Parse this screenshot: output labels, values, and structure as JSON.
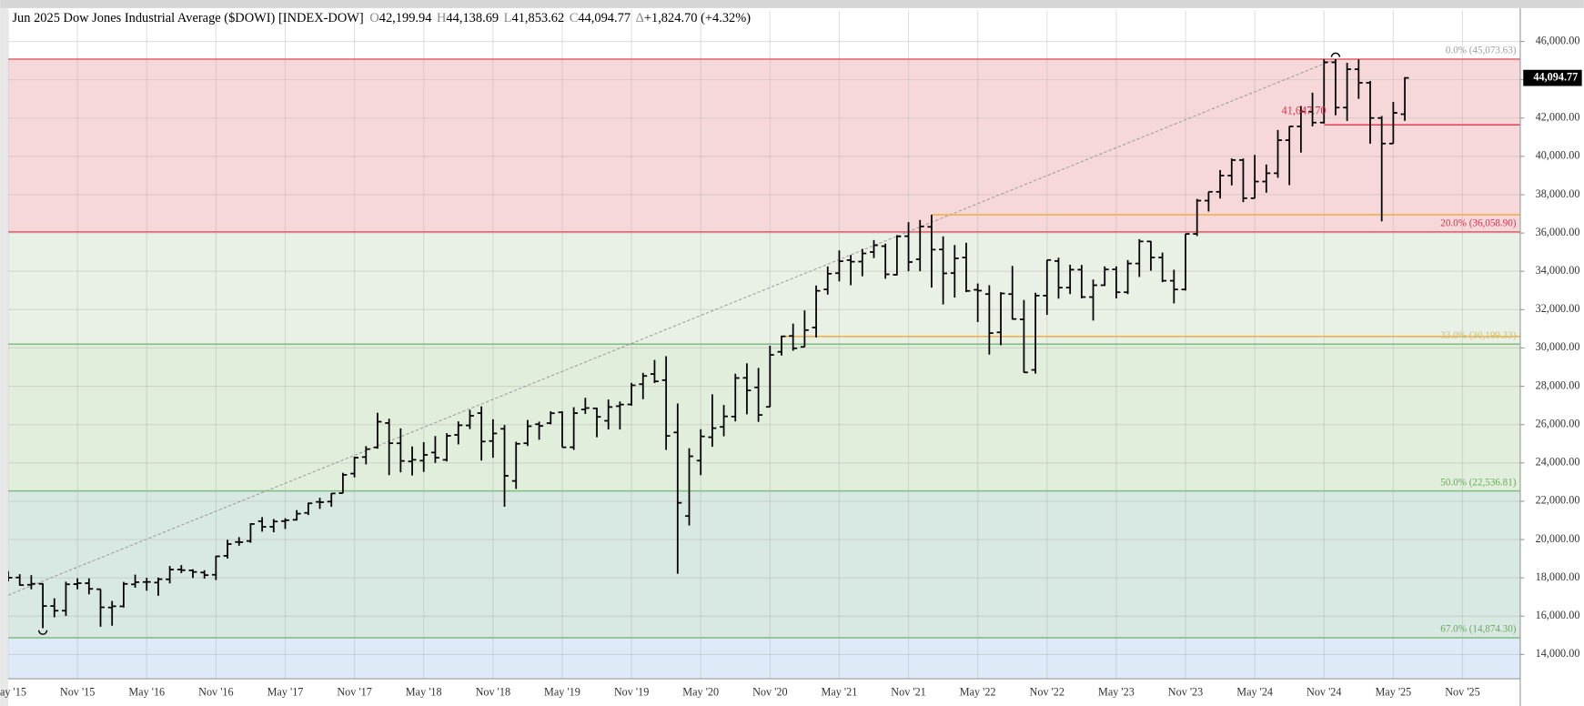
{
  "chart_data": {
    "type": "ohlc",
    "title": "Jun 2025 Dow Jones Industrial Average ($DOWI) [INDEX-DOW]",
    "header_values": [
      {
        "key": "O",
        "value": "42,199.94"
      },
      {
        "key": "H",
        "value": "44,138.69"
      },
      {
        "key": "L",
        "value": "41,853.62"
      },
      {
        "key": "C",
        "value": "44,094.77"
      },
      {
        "key": "Δ",
        "value": "+1,824.70 (+4.32%)"
      }
    ],
    "color": "#000000",
    "x": [
      "2015-05",
      "2015-06",
      "2015-07",
      "2015-08",
      "2015-09",
      "2015-10",
      "2015-11",
      "2015-12",
      "2016-01",
      "2016-02",
      "2016-03",
      "2016-04",
      "2016-05",
      "2016-06",
      "2016-07",
      "2016-08",
      "2016-09",
      "2016-10",
      "2016-11",
      "2016-12",
      "2017-01",
      "2017-02",
      "2017-03",
      "2017-04",
      "2017-05",
      "2017-06",
      "2017-07",
      "2017-08",
      "2017-09",
      "2017-10",
      "2017-11",
      "2017-12",
      "2018-01",
      "2018-02",
      "2018-03",
      "2018-04",
      "2018-05",
      "2018-06",
      "2018-07",
      "2018-08",
      "2018-09",
      "2018-10",
      "2018-11",
      "2018-12",
      "2019-01",
      "2019-02",
      "2019-03",
      "2019-04",
      "2019-05",
      "2019-06",
      "2019-07",
      "2019-08",
      "2019-09",
      "2019-10",
      "2019-11",
      "2019-12",
      "2020-01",
      "2020-02",
      "2020-03",
      "2020-04",
      "2020-05",
      "2020-06",
      "2020-07",
      "2020-08",
      "2020-09",
      "2020-10",
      "2020-11",
      "2020-12",
      "2021-01",
      "2021-02",
      "2021-03",
      "2021-04",
      "2021-05",
      "2021-06",
      "2021-07",
      "2021-08",
      "2021-09",
      "2021-10",
      "2021-11",
      "2021-12",
      "2022-01",
      "2022-02",
      "2022-03",
      "2022-04",
      "2022-05",
      "2022-06",
      "2022-07",
      "2022-08",
      "2022-09",
      "2022-10",
      "2022-11",
      "2022-12",
      "2023-01",
      "2023-02",
      "2023-03",
      "2023-04",
      "2023-05",
      "2023-06",
      "2023-07",
      "2023-08",
      "2023-09",
      "2023-10",
      "2023-11",
      "2023-12",
      "2024-01",
      "2024-02",
      "2024-03",
      "2024-04",
      "2024-05",
      "2024-06",
      "2024-07",
      "2024-08",
      "2024-09",
      "2024-10",
      "2024-11",
      "2024-12",
      "2025-01",
      "2025-02",
      "2025-03",
      "2025-04",
      "2025-05",
      "2025-06"
    ],
    "open": [
      17840,
      18017,
      17639,
      17690,
      16529,
      16285,
      17672,
      17719,
      17406,
      16452,
      16513,
      17661,
      17783,
      17754,
      17924,
      18434,
      18393,
      18279,
      18162,
      19149,
      19872,
      19923,
      20957,
      20665,
      20962,
      21030,
      21392,
      21964,
      21981,
      22423,
      23442,
      24305,
      24809,
      26083,
      25025,
      24076,
      24117,
      24542,
      24161,
      25461,
      25956,
      26598,
      25142,
      25779,
      23058,
      25026,
      26019,
      26076,
      26639,
      24819,
      26787,
      26847,
      26198,
      26962,
      27053,
      28109,
      28638,
      28320,
      25591,
      21227,
      24120,
      25342,
      25880,
      26419,
      28439,
      27940,
      26925,
      29799,
      30627,
      30055,
      31065,
      33054,
      33904,
      34584,
      34507,
      35007,
      35312,
      33820,
      35833,
      34630,
      36321,
      35140,
      33907,
      34718,
      33037,
      32813,
      30815,
      32812,
      31493,
      28856,
      32732,
      34538,
      33148,
      34086,
      32656,
      33275,
      34100,
      32908,
      34408,
      35560,
      34722,
      33508,
      33053,
      35951,
      37690,
      38150,
      38996,
      39807,
      37816,
      38686,
      39119,
      40843,
      41563,
      42330,
      41763,
      44911,
      42544,
      44545,
      43841,
      42002,
      40669,
      42199.94
    ],
    "high": [
      18351,
      18190,
      18137,
      17712,
      16933,
      17800,
      17978,
      17978,
      17406,
      16795,
      17790,
      18168,
      18001,
      18017,
      18622,
      18668,
      18450,
      18399,
      19152,
      19987,
      20125,
      20851,
      21169,
      21071,
      21113,
      21535,
      21929,
      22179,
      22420,
      23485,
      24328,
      24876,
      26617,
      26307,
      25800,
      24858,
      25086,
      25402,
      25550,
      26167,
      26769,
      26951,
      26278,
      25980,
      25105,
      26241,
      26155,
      26696,
      26696,
      26907,
      27398,
      26881,
      27306,
      27207,
      28175,
      28701,
      29374,
      29568,
      27102,
      24765,
      25758,
      27580,
      27022,
      28655,
      29199,
      28958,
      30116,
      30637,
      31272,
      31961,
      33259,
      34257,
      35091,
      34849,
      35171,
      35631,
      35445,
      35892,
      36566,
      36680,
      36952,
      35824,
      35372,
      35492,
      33364,
      33273,
      32911,
      34281,
      32504,
      32883,
      34589,
      34712,
      34342,
      34335,
      33572,
      34257,
      34257,
      34588,
      35679,
      35578,
      34977,
      34082,
      35954,
      37778,
      38150,
      39283,
      39890,
      39889,
      40077,
      39574,
      41376,
      41585,
      42628,
      43325,
      45071,
      45073.63,
      44883,
      45054,
      43934,
      42109,
      42842,
      44138.69
    ],
    "low": [
      17818,
      17597,
      17400,
      15370,
      15942,
      16013,
      17400,
      17138,
      15451,
      15503,
      16448,
      17484,
      17331,
      17063,
      17713,
      18245,
      17992,
      17959,
      17884,
      19006,
      19678,
      19831,
      20412,
      20379,
      20553,
      20997,
      21279,
      21600,
      21709,
      22416,
      23242,
      23922,
      24741,
      23360,
      23509,
      23344,
      23531,
      23997,
      24077,
      24965,
      25766,
      24122,
      24268,
      21713,
      22638,
      24883,
      25208,
      26014,
      24815,
      24680,
      26556,
      25339,
      25744,
      25743,
      26987,
      27325,
      28170,
      24681,
      18214,
      20735,
      23361,
      24843,
      25390,
      26167,
      26537,
      26143,
      26925,
      29602,
      29856,
      30055,
      30547,
      32787,
      33474,
      33271,
      33741,
      34691,
      33613,
      33785,
      34006,
      34006,
      33150,
      32272,
      32632,
      32913,
      31354,
      29653,
      30143,
      31480,
      28715,
      28660,
      31727,
      32573,
      32812,
      32590,
      31430,
      33235,
      32586,
      32808,
      33705,
      34030,
      33435,
      32327,
      32996,
      35840,
      37122,
      37798,
      38487,
      37612,
      37816,
      38104,
      38880,
      38499,
      40197,
      41563,
      41717,
      42140,
      41844,
      43000,
      40661,
      36612,
      40669,
      41853.62
    ],
    "close": [
      18010,
      17620,
      17690,
      16528,
      16285,
      17664,
      17720,
      17425,
      16466,
      16517,
      17685,
      17774,
      17787,
      17930,
      18432,
      18401,
      18308,
      18142,
      19124,
      19763,
      19864,
      20812,
      20663,
      20941,
      21009,
      21350,
      21891,
      21948,
      22405,
      23377,
      24272,
      24719,
      26149,
      25029,
      24103,
      24163,
      24416,
      24271,
      25415,
      25965,
      26458,
      25116,
      25538,
      23327,
      24999,
      25916,
      25929,
      26593,
      24815,
      26600,
      26864,
      26403,
      26917,
      27046,
      28051,
      28538,
      28256,
      25409,
      21917,
      24346,
      25383,
      25813,
      26428,
      28430,
      27782,
      26502,
      29639,
      30606,
      29983,
      30932,
      32982,
      33875,
      34529,
      34503,
      34935,
      35361,
      33844,
      35820,
      34484,
      36338,
      35132,
      33893,
      34678,
      32977,
      32990,
      30775,
      32845,
      31510,
      28726,
      32733,
      34590,
      33147,
      34086,
      32657,
      33274,
      34098,
      32908,
      34408,
      35560,
      34722,
      33508,
      33053,
      35951,
      37690,
      38150,
      38996,
      39807,
      37816,
      38686,
      39119,
      40843,
      41563,
      42330,
      41763,
      44911,
      42544,
      44545,
      43841,
      42002,
      40669,
      42270,
      44094.77
    ],
    "last_price": {
      "value": 44094.77,
      "label": "44,094.77"
    },
    "xlim": [
      "2015-05",
      "2026-04"
    ],
    "xticks": [
      {
        "value": "2015-05",
        "label": "May '15"
      },
      {
        "value": "2015-11",
        "label": "Nov '15"
      },
      {
        "value": "2016-05",
        "label": "May '16"
      },
      {
        "value": "2016-11",
        "label": "Nov '16"
      },
      {
        "value": "2017-05",
        "label": "May '17"
      },
      {
        "value": "2017-11",
        "label": "Nov '17"
      },
      {
        "value": "2018-05",
        "label": "May '18"
      },
      {
        "value": "2018-11",
        "label": "Nov '18"
      },
      {
        "value": "2019-05",
        "label": "May '19"
      },
      {
        "value": "2019-11",
        "label": "Nov '19"
      },
      {
        "value": "2020-05",
        "label": "May '20"
      },
      {
        "value": "2020-11",
        "label": "Nov '20"
      },
      {
        "value": "2021-05",
        "label": "May '21"
      },
      {
        "value": "2021-11",
        "label": "Nov '21"
      },
      {
        "value": "2022-05",
        "label": "May '22"
      },
      {
        "value": "2022-11",
        "label": "Nov '22"
      },
      {
        "value": "2023-05",
        "label": "May '23"
      },
      {
        "value": "2023-11",
        "label": "Nov '23"
      },
      {
        "value": "2024-05",
        "label": "May '24"
      },
      {
        "value": "2024-11",
        "label": "Nov '24"
      },
      {
        "value": "2025-05",
        "label": "May '25"
      },
      {
        "value": "2025-11",
        "label": "Nov '25"
      }
    ],
    "ylim": [
      12735,
      47634
    ],
    "yticks": [
      {
        "value": 14000,
        "label": "14,000.00"
      },
      {
        "value": 16000,
        "label": "16,000.00"
      },
      {
        "value": 18000,
        "label": "18,000.00"
      },
      {
        "value": 20000,
        "label": "20,000.00"
      },
      {
        "value": 22000,
        "label": "22,000.00"
      },
      {
        "value": 24000,
        "label": "24,000.00"
      },
      {
        "value": 26000,
        "label": "26,000.00"
      },
      {
        "value": 28000,
        "label": "28,000.00"
      },
      {
        "value": 30000,
        "label": "30,000.00"
      },
      {
        "value": 32000,
        "label": "32,000.00"
      },
      {
        "value": 34000,
        "label": "34,000.00"
      },
      {
        "value": 36000,
        "label": "36,000.00"
      },
      {
        "value": 38000,
        "label": "38,000.00"
      },
      {
        "value": 40000,
        "label": "40,000.00"
      },
      {
        "value": 42000,
        "label": "42,000.00"
      },
      {
        "value": 44000,
        "label": "44,000.00"
      },
      {
        "value": 46000,
        "label": "46,000.00"
      }
    ],
    "grid": true,
    "fib_levels": [
      {
        "value": 45073.63,
        "label": "0.0% (45,073.63)",
        "line_color": "#e0606c",
        "label_color": "#a0a0a0",
        "zone_color": "#f7d8da"
      },
      {
        "value": 36058.9,
        "label": "20.0% (36,058.90)",
        "line_color": "#e0606c",
        "label_color": "#e0304a",
        "zone_color": "#e9f1e6"
      },
      {
        "value": 30199.33,
        "label": "33.0% (30,199.33)",
        "line_color": "#80bb80",
        "label_color": "#c8c078",
        "zone_color": "#e0eedb"
      },
      {
        "value": 22536.81,
        "label": "50.0% (22,536.81)",
        "line_color": "#80bb80",
        "label_color": "#6aaa5a",
        "zone_color": "#d8e8e2"
      },
      {
        "value": 14874.3,
        "label": "67.0% (14,874.30)",
        "line_color": "#80bb80",
        "label_color": "#6aaa5a",
        "zone_color": "#deeaf7"
      }
    ],
    "horizontal_lines": [
      {
        "value": 36950,
        "start": "2022-01",
        "color": "#f0a830"
      },
      {
        "value": 30600,
        "start": "2020-12",
        "color": "#f0a830"
      },
      {
        "value": 41647.7,
        "label": "41,647.70",
        "start": "2024-11",
        "color": "#e0304a"
      }
    ],
    "trendline": {
      "start": {
        "x": "2015-05",
        "y": 17100
      },
      "end": {
        "x": "2024-12",
        "y": 45073.63
      },
      "color": "#999999"
    }
  }
}
